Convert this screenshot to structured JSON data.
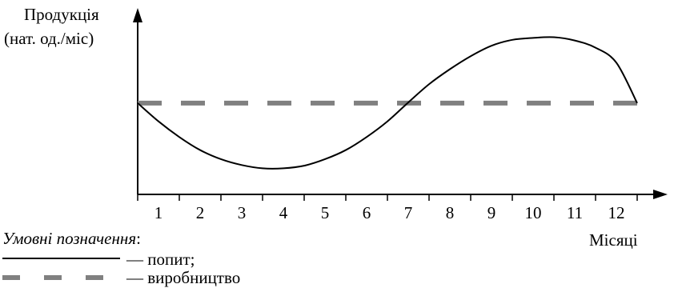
{
  "chart_data": {
    "type": "line",
    "ylabel_line1": "Продукція",
    "ylabel_line2": "(нат. од./міс)",
    "xlabel": "Місяці",
    "categories": [
      "1",
      "2",
      "3",
      "4",
      "5",
      "6",
      "7",
      "8",
      "9",
      "10",
      "11",
      "12"
    ],
    "x": [
      0,
      0.5,
      1,
      1.5,
      2,
      2.5,
      3,
      3.5,
      4,
      4.5,
      5,
      5.5,
      6,
      6.5,
      7,
      7.5,
      8,
      8.5,
      9,
      9.5,
      10,
      10.5,
      11,
      11.5,
      12
    ],
    "series": [
      {
        "name": "попит",
        "style": "solid",
        "color": "#000000",
        "values": [
          0,
          -0.28,
          -0.52,
          -0.72,
          -0.86,
          -0.95,
          -1.0,
          -1.0,
          -0.96,
          -0.86,
          -0.72,
          -0.52,
          -0.28,
          0.01,
          0.29,
          0.52,
          0.72,
          0.88,
          0.97,
          1.0,
          1.01,
          0.96,
          0.85,
          0.62,
          0.0
        ]
      },
      {
        "name": "виробництво",
        "style": "dashed",
        "color": "#808080",
        "values": [
          0,
          0,
          0,
          0,
          0,
          0,
          0,
          0,
          0,
          0,
          0,
          0,
          0,
          0,
          0,
          0,
          0,
          0,
          0,
          0,
          0,
          0,
          0,
          0,
          0
        ]
      }
    ],
    "ylim": [
      -1.4,
      1.25
    ],
    "xlim": [
      0,
      12
    ],
    "grid": false,
    "legend_placement": "bottom-left",
    "legend_title": "Умовні позначення",
    "legend_colon": ":",
    "legend_demand": "— попит;",
    "legend_production": "— виробництво"
  }
}
